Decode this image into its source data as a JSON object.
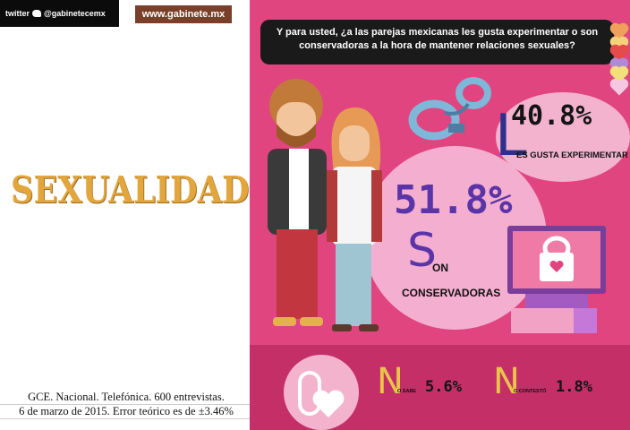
{
  "header": {
    "social": "@gabinetecemx",
    "social_network": "twitter",
    "website": "www.gabinete.mx"
  },
  "section_title": "SEXUALIDAD",
  "source": {
    "line1": "GCE. Nacional. Telefónica. 600 entrevistas.",
    "line2": "6 de marzo de 2015. Error teórico es de ±3.46%"
  },
  "question": "Y para usted, ¿a las parejas mexicanas les gusta experimentar o son conservadoras a la hora de mantener relaciones sexuales?",
  "chart_data": {
    "type": "pie",
    "categories": [
      "Les gusta experimentar",
      "Son conservadoras",
      "No sabe",
      "No contestó"
    ],
    "values": [
      40.8,
      51.8,
      5.6,
      1.8
    ],
    "labels": [
      "40.8%",
      "51.8%",
      "5.6%",
      "1.8%"
    ],
    "title": "",
    "label_parts": [
      {
        "initial": "L",
        "rest": "ES GUSTA EXPERIMENTAR"
      },
      {
        "initial": "S",
        "rest_line1": "ON",
        "rest_line2": "CONSERVADORAS"
      },
      {
        "initial": "N",
        "rest": "O SABE"
      },
      {
        "initial": "N",
        "rest": "O CONTESTÓ"
      }
    ]
  },
  "colors": {
    "panel": "#e0457f",
    "accent_purple": "#5b34a8",
    "accent_navy": "#2f2f8e",
    "accent_yellow": "#e8c44a",
    "bubble": "#f3b3cf",
    "title_gold": "#e2a63c"
  },
  "icons": [
    "handcuffs-icon",
    "computer-lock-icon",
    "condom-icon",
    "heart-icon",
    "couple-illustration"
  ]
}
